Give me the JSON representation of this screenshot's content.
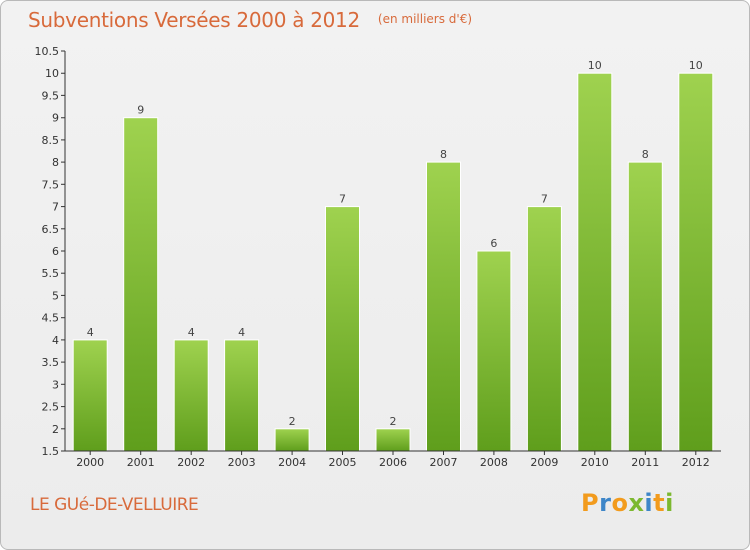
{
  "header": {
    "title": "Subventions Versées 2000 à 2012",
    "subtitle": "(en milliers d'€)"
  },
  "footer": {
    "place": "LE GUé-DE-VELLUIRE",
    "logo_letters": [
      "P",
      "r",
      "o",
      "x",
      "i",
      "t",
      "i"
    ],
    "logo_colors": [
      "#f29b1d",
      "#3e86c8",
      "#f29b1d",
      "#7cb82f",
      "#3e86c8",
      "#f29b1d",
      "#7cb82f"
    ]
  },
  "chart_data": {
    "type": "bar",
    "title": "Subventions Versées 2000 à 2012",
    "subtitle": "(en milliers d'€)",
    "categories": [
      "2000",
      "2001",
      "2002",
      "2003",
      "2004",
      "2005",
      "2006",
      "2007",
      "2008",
      "2009",
      "2010",
      "2011",
      "2012"
    ],
    "values": [
      4,
      9,
      4,
      4,
      2,
      7,
      2,
      8,
      6,
      7,
      10,
      8,
      10
    ],
    "ylim": [
      1.5,
      10.5
    ],
    "yticks": [
      "1.5",
      "2",
      "2.5",
      "3",
      "3.5",
      "4",
      "4.5",
      "5",
      "5.5",
      "6",
      "6.5",
      "7",
      "7.5",
      "8",
      "8.5",
      "9",
      "9.5",
      "10",
      "10.5"
    ],
    "grid": false,
    "colors": {
      "bar_light": "#9fd24f",
      "bar_dark": "#5f9e1c",
      "label": "#444444",
      "axis": "#333333"
    }
  }
}
